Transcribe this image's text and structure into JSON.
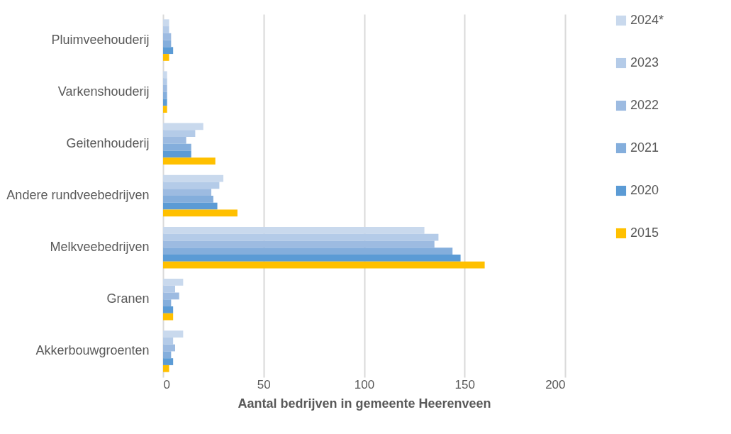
{
  "chart_data": {
    "type": "bar",
    "orientation": "horizontal",
    "xlabel": "Aantal bedrijven in gemeente Heerenveen",
    "categories": [
      "Pluimveehouderij",
      "Varkenshouderij",
      "Geitenhouderij",
      "Andere rundveebedrijven",
      "Melkveebedrijven",
      "Granen",
      "Akkerbouwgroenten"
    ],
    "series": [
      {
        "name": "2024*",
        "color": "#c9d9ed",
        "values": [
          3,
          2,
          20,
          30,
          130,
          10,
          10
        ]
      },
      {
        "name": "2023",
        "color": "#b4cbe8",
        "values": [
          3,
          2,
          16,
          28,
          137,
          6,
          5
        ]
      },
      {
        "name": "2022",
        "color": "#9dbbe1",
        "values": [
          4,
          2,
          11.5,
          24,
          135,
          8,
          6
        ]
      },
      {
        "name": "2021",
        "color": "#84aedc",
        "values": [
          4,
          2,
          14,
          25,
          144,
          4,
          4
        ]
      },
      {
        "name": "2020",
        "color": "#5b9bd5",
        "values": [
          5,
          2,
          14,
          27,
          148,
          5,
          5
        ]
      },
      {
        "name": "2015",
        "color": "#ffc000",
        "values": [
          3,
          2,
          26,
          37,
          160,
          5,
          3
        ]
      }
    ],
    "xlim": [
      0,
      200
    ],
    "xticks": [
      0,
      50,
      100,
      150,
      200
    ],
    "grid": "x",
    "legend": "right"
  }
}
